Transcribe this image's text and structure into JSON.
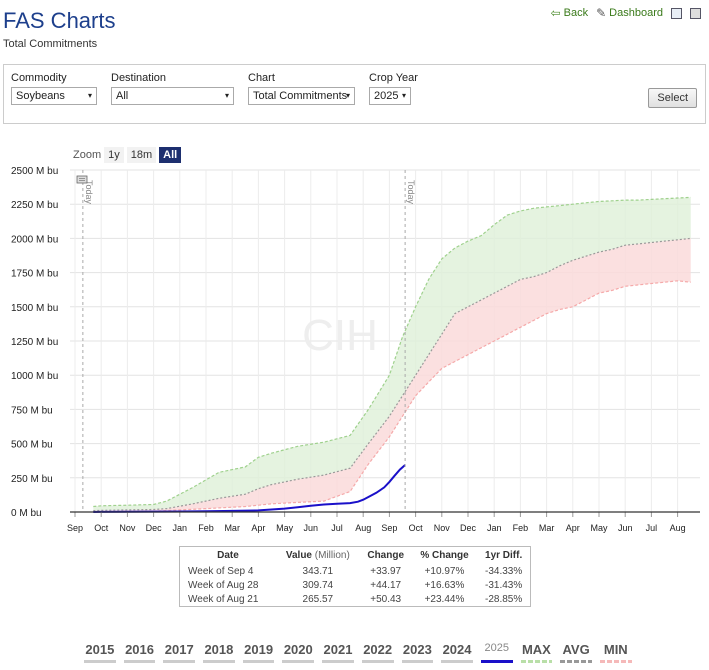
{
  "header": {
    "title": "FAS Charts",
    "subtitle": "Total Commitments",
    "back_label": "Back",
    "dashboard_label": "Dashboard",
    "back_icon": "arrow-left-icon",
    "dashboard_icon": "pin-icon"
  },
  "filters": {
    "commodity": {
      "label": "Commodity",
      "value": "Soybeans"
    },
    "destination": {
      "label": "Destination",
      "value": "All"
    },
    "chart": {
      "label": "Chart",
      "value": "Total Commitments"
    },
    "crop_year": {
      "label": "Crop Year",
      "value": "2025"
    },
    "select_label": "Select"
  },
  "zoom": {
    "label": "Zoom",
    "options": [
      "1y",
      "18m",
      "All"
    ],
    "active": "All"
  },
  "watermark": "CIH",
  "chart_data": {
    "type": "area",
    "y_ticks": [
      "0 M bu",
      "250 M bu",
      "500 M bu",
      "750 M bu",
      "1000 M bu",
      "1250 M bu",
      "1500 M bu",
      "1750 M bu",
      "2000 M bu",
      "2250 M bu",
      "2500 M bu"
    ],
    "ylim": [
      0,
      2500
    ],
    "x_ticks": [
      "Sep",
      "Oct",
      "Nov",
      "Dec",
      "Jan",
      "Feb",
      "Mar",
      "Apr",
      "May",
      "Jun",
      "Jul",
      "Aug",
      "Sep",
      "Oct",
      "Nov",
      "Dec",
      "Jan",
      "Feb",
      "Mar",
      "Apr",
      "May",
      "Jun",
      "Jul",
      "Aug"
    ],
    "plot_lines": [
      "Today",
      "Today"
    ],
    "today_months": [
      0.3,
      12.6
    ],
    "band_months": [
      0.7,
      1,
      2,
      3,
      3.5,
      4.5,
      5.5,
      6.5,
      7,
      7.5,
      8.5,
      9.5,
      10.5,
      11.2,
      12,
      12.5,
      13,
      13.5,
      14,
      14.5,
      15,
      15.5,
      16,
      16.5,
      17,
      17.5,
      18,
      18.5,
      19,
      19.5,
      20,
      20.5,
      21,
      21.5,
      22,
      22.5,
      23,
      23.5
    ],
    "series": [
      {
        "name": "MAX",
        "color": "#9fd18d",
        "values": [
          40,
          45,
          50,
          55,
          80,
          180,
          290,
          330,
          400,
          430,
          480,
          510,
          560,
          750,
          1000,
          1280,
          1500,
          1700,
          1850,
          1930,
          1980,
          2020,
          2100,
          2170,
          2200,
          2220,
          2230,
          2240,
          2250,
          2260,
          2270,
          2275,
          2280,
          2280,
          2285,
          2290,
          2295,
          2300
        ]
      },
      {
        "name": "AVG",
        "color": "#999999",
        "values": [
          10,
          12,
          15,
          18,
          25,
          60,
          100,
          130,
          170,
          200,
          240,
          270,
          320,
          500,
          700,
          850,
          1000,
          1150,
          1300,
          1450,
          1500,
          1550,
          1600,
          1650,
          1700,
          1720,
          1750,
          1800,
          1840,
          1870,
          1900,
          1920,
          1950,
          1960,
          1970,
          1980,
          1990,
          2000
        ]
      },
      {
        "name": "MIN",
        "color": "#f5a9a9",
        "values": [
          0,
          2,
          4,
          6,
          10,
          20,
          30,
          40,
          50,
          60,
          70,
          80,
          150,
          350,
          550,
          700,
          850,
          950,
          1050,
          1100,
          1150,
          1200,
          1250,
          1300,
          1350,
          1400,
          1450,
          1480,
          1500,
          1550,
          1600,
          1620,
          1650,
          1660,
          1670,
          1680,
          1690,
          1680
        ]
      }
    ],
    "current": {
      "name": "2025",
      "color": "#1a10c9",
      "months": [
        0.7,
        1,
        2,
        3,
        4,
        5,
        6,
        7,
        7.5,
        8,
        8.5,
        9,
        9.5,
        10,
        10.5,
        10.8,
        11.0,
        11.2,
        11.5,
        11.8,
        12.0,
        12.2,
        12.4,
        12.6
      ],
      "values": [
        0,
        1,
        2,
        3,
        4,
        5,
        8,
        12,
        18,
        25,
        35,
        45,
        55,
        60,
        65,
        75,
        90,
        110,
        140,
        180,
        220,
        265.57,
        309.74,
        343.71
      ]
    }
  },
  "table": {
    "headers": {
      "date": "Date",
      "value": "Value",
      "value_unit": "(Million)",
      "change": "Change",
      "pct": "% Change",
      "diff": "1yr Diff."
    },
    "rows": [
      {
        "date": "Week of Sep 4",
        "value": "343.71",
        "change": "+33.97",
        "pct": "+10.97%",
        "diff": "-34.33%"
      },
      {
        "date": "Week of Aug 28",
        "value": "309.74",
        "change": "+44.17",
        "pct": "+16.63%",
        "diff": "-31.43%"
      },
      {
        "date": "Week of Aug 21",
        "value": "265.57",
        "change": "+50.43",
        "pct": "+23.44%",
        "diff": "-28.85%"
      }
    ]
  },
  "legend_years": [
    "2015",
    "2016",
    "2017",
    "2018",
    "2019",
    "2020",
    "2021",
    "2022",
    "2023",
    "2024",
    "2025",
    "MAX",
    "AVG",
    "MIN"
  ]
}
